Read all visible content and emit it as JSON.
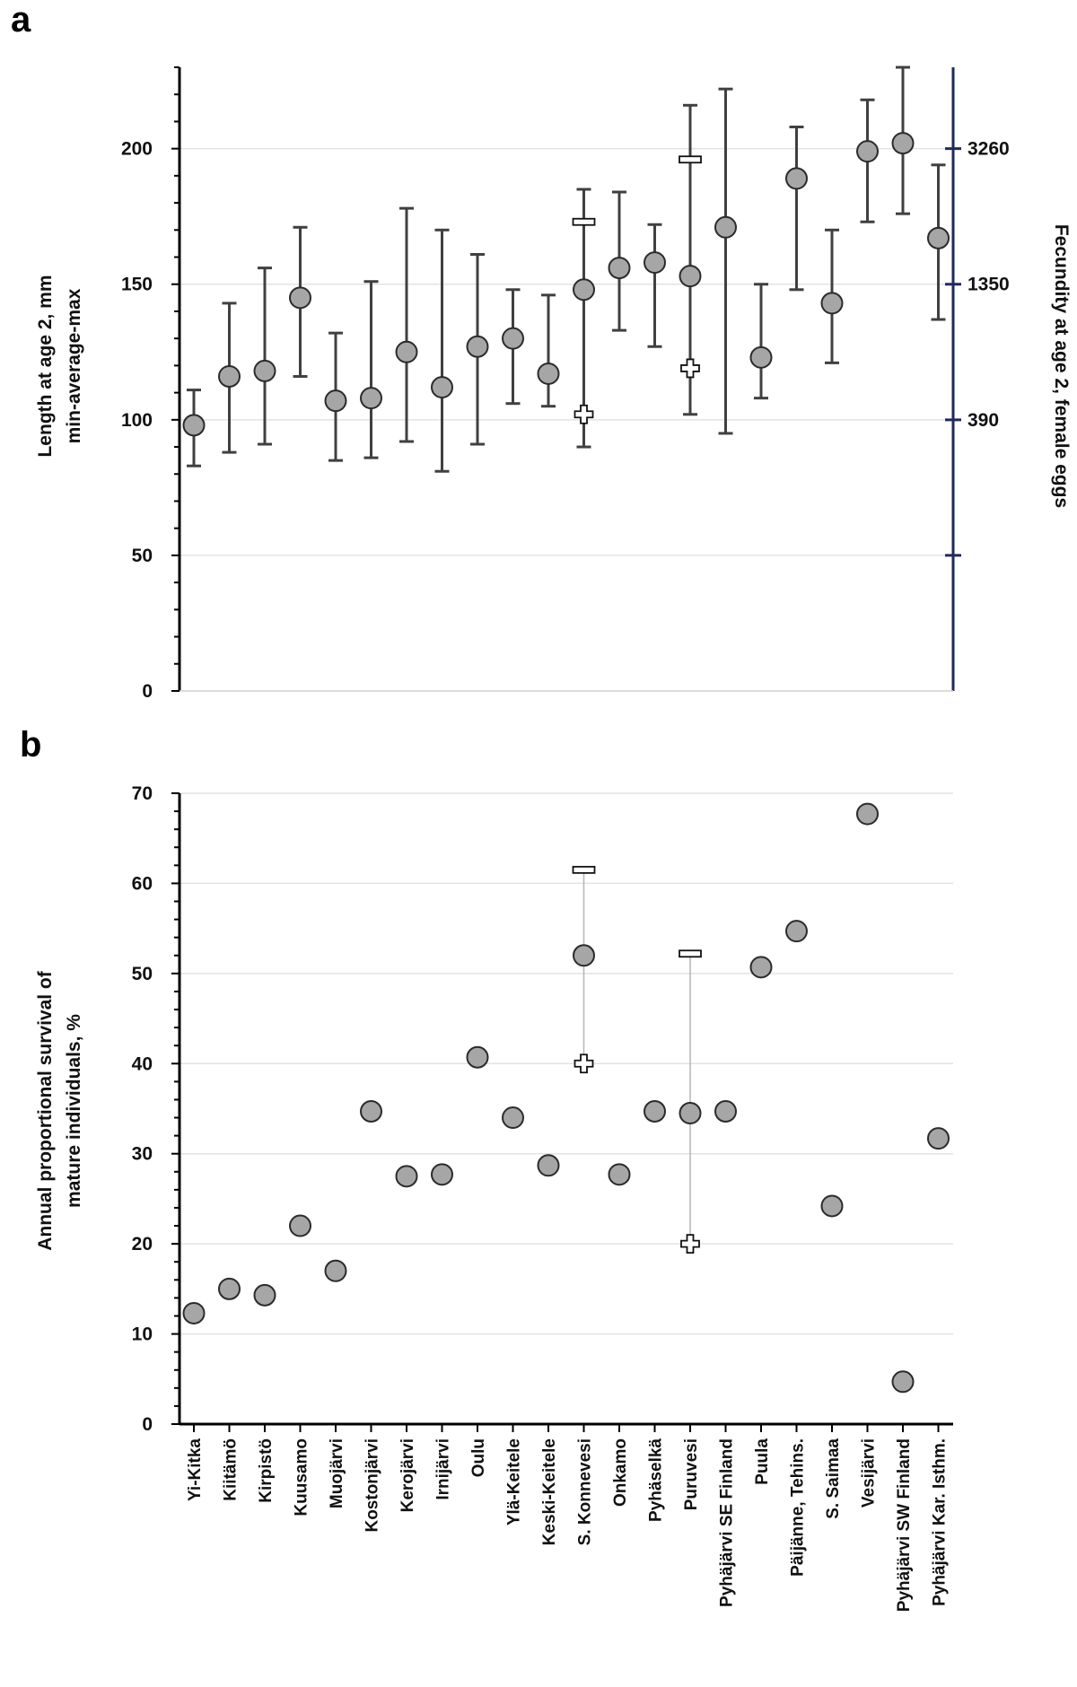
{
  "categories": [
    "Yi-Kitka",
    "Kiitämö",
    "Kirpistö",
    "Kuusamo",
    "Muojärvi",
    "Kostonjärvi",
    "Kerojärvi",
    "Irnijärvi",
    "Oulu",
    "Ylä-Keitele",
    "Keski-Keitele",
    "S. Konnevesi",
    "Onkamo",
    "Pyhäselkä",
    "Puruvesi",
    "Pyhäjärvi SE Finland",
    "Puula",
    "Päijänne, Tehins.",
    "S. Saimaa",
    "Vesijärvi",
    "Pyhäjärvi SW Finland",
    "Pyhäjärvi Kar. Isthm."
  ],
  "colors": {
    "marker_fill": "#a6a6a6",
    "marker_edge": "#2b2b2b",
    "error_bar": "#404040",
    "axis_left": "#000000",
    "axis_right": "#1f2a5c",
    "grid": "#e3e3e3",
    "thin_line": "#b5b5b5"
  },
  "chart_data": [
    {
      "panel": "a",
      "type": "scatter",
      "ylabel_lines": [
        "Length at age 2, mm",
        "min-average-max"
      ],
      "ylabel2": "Fecundity at age 2, female eggs",
      "ylim": [
        0,
        230
      ],
      "yticks": [
        0,
        50,
        100,
        150,
        200
      ],
      "y2_ticks": [
        {
          "label": "390",
          "at_length": 100
        },
        {
          "label": "1350",
          "at_length": 150
        },
        {
          "label": "3260",
          "at_length": 200
        }
      ],
      "avg": [
        98,
        116,
        118,
        145,
        107,
        108,
        125,
        112,
        127,
        130,
        117,
        148,
        156,
        158,
        153,
        171,
        123,
        189,
        143,
        199,
        202,
        167
      ],
      "min": [
        83,
        88,
        91,
        116,
        85,
        86,
        92,
        81,
        91,
        106,
        105,
        90,
        133,
        127,
        102,
        95,
        108,
        148,
        121,
        173,
        176,
        137
      ],
      "max": [
        111,
        143,
        156,
        171,
        132,
        151,
        178,
        170,
        161,
        148,
        146,
        185,
        184,
        172,
        216,
        222,
        150,
        208,
        170,
        218,
        230,
        194
      ],
      "extra_markers": [
        {
          "category": "S. Konnevesi",
          "dash": 173,
          "cross": 102
        },
        {
          "category": "Puruvesi",
          "dash": 196,
          "cross": 119
        }
      ]
    },
    {
      "panel": "b",
      "type": "scatter",
      "ylabel_lines": [
        "Annual proportional survival of",
        "mature individuals, %"
      ],
      "ylim": [
        0,
        70
      ],
      "yticks": [
        0,
        10,
        20,
        30,
        40,
        50,
        60,
        70
      ],
      "values": [
        12.3,
        15,
        14.3,
        22,
        17,
        34.7,
        27.5,
        27.7,
        40.7,
        34,
        28.7,
        52,
        27.7,
        34.7,
        34.5,
        34.7,
        50.7,
        54.7,
        24.2,
        67.7,
        4.7,
        31.7
      ],
      "ranges": [
        {
          "category": "S. Konnevesi",
          "dash": 61.5,
          "cross": 40
        },
        {
          "category": "Puruvesi",
          "dash": 52.2,
          "cross": 20
        }
      ]
    }
  ]
}
